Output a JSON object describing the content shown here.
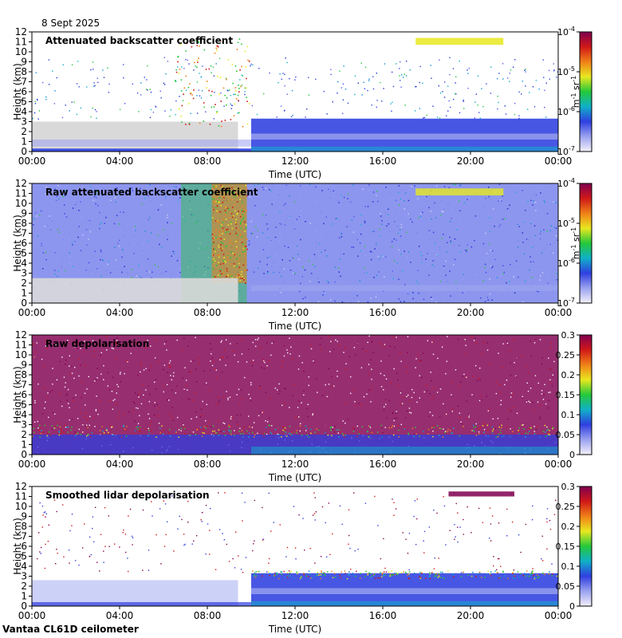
{
  "date": "8 Sept 2025",
  "footer": "Vantaa CL61D ceilometer",
  "colors": {
    "axis": "#000000",
    "clear_air": "#d9d9d9",
    "cmap": [
      "#f4f0fb",
      "#9aa2ef",
      "#2f3fe0",
      "#10b0c8",
      "#24c83a",
      "#e8e820",
      "#f08018",
      "#d01818",
      "#800050"
    ]
  },
  "chart_data": [
    {
      "type": "heatmap",
      "id": "att",
      "title": "Attenuated backscatter coefficient",
      "xlabel": "Time (UTC)",
      "ylabel": "Height (km)",
      "xticks": [
        "00:00",
        "04:00",
        "08:00",
        "12:00",
        "16:00",
        "20:00",
        "00:00"
      ],
      "xlim": [
        0,
        24
      ],
      "ylim": [
        0,
        12
      ],
      "yticks": [
        0,
        1,
        2,
        3,
        4,
        5,
        6,
        7,
        8,
        9,
        10,
        11,
        12
      ],
      "colorbar": {
        "scale": "log",
        "range": [
          1e-07,
          0.0001
        ],
        "ticks": [
          {
            "value": 1e-07,
            "base": "10",
            "exp": "-7"
          },
          {
            "value": 1e-06,
            "base": "10",
            "exp": "-6"
          },
          {
            "value": 1e-05,
            "base": "10",
            "exp": "-5"
          },
          {
            "value": 0.0001,
            "base": "10",
            "exp": "-4"
          }
        ],
        "label": {
          "m": "m",
          "m_exp": "-1",
          "sr": " sr",
          "sr_exp": "-1"
        }
      }
    },
    {
      "type": "heatmap",
      "id": "raw_att",
      "title": "Raw attenuated backscatter coefficient",
      "xlabel": "Time (UTC)",
      "ylabel": "Height (km)",
      "xticks": [
        "00:00",
        "04:00",
        "08:00",
        "12:00",
        "16:00",
        "20:00",
        "00:00"
      ],
      "xlim": [
        0,
        24
      ],
      "ylim": [
        0,
        12
      ],
      "yticks": [
        0,
        1,
        2,
        3,
        4,
        5,
        6,
        7,
        8,
        9,
        10,
        11,
        12
      ],
      "colorbar": {
        "scale": "log",
        "range": [
          1e-07,
          0.0001
        ],
        "ticks": [
          {
            "value": 1e-07,
            "base": "10",
            "exp": "-7"
          },
          {
            "value": 1e-06,
            "base": "10",
            "exp": "-6"
          },
          {
            "value": 1e-05,
            "base": "10",
            "exp": "-5"
          },
          {
            "value": 0.0001,
            "base": "10",
            "exp": "-4"
          }
        ],
        "label": {
          "m": "m",
          "m_exp": "-1",
          "sr": " sr",
          "sr_exp": "-1"
        }
      }
    },
    {
      "type": "heatmap",
      "id": "raw_depol",
      "title": "Raw depolarisation",
      "xlabel": "Time (UTC)",
      "ylabel": "Height (km)",
      "xticks": [
        "00:00",
        "04:00",
        "08:00",
        "12:00",
        "16:00",
        "20:00",
        "00:00"
      ],
      "xlim": [
        0,
        24
      ],
      "ylim": [
        0,
        12
      ],
      "yticks": [
        0,
        1,
        2,
        3,
        4,
        5,
        6,
        7,
        8,
        9,
        10,
        11,
        12
      ],
      "colorbar": {
        "scale": "linear",
        "range": [
          0,
          0.3
        ],
        "ticks": [
          {
            "value": 0,
            "label": "0"
          },
          {
            "value": 0.05,
            "label": "0.05"
          },
          {
            "value": 0.1,
            "label": "0.1"
          },
          {
            "value": 0.15,
            "label": "0.15"
          },
          {
            "value": 0.2,
            "label": "0.2"
          },
          {
            "value": 0.25,
            "label": "0.25"
          },
          {
            "value": 0.3,
            "label": "0.3"
          }
        ]
      }
    },
    {
      "type": "heatmap",
      "id": "smooth_depol",
      "title": "Smoothed lidar depolarisation",
      "xlabel": "Time (UTC)",
      "ylabel": "Height (km)",
      "xticks": [
        "00:00",
        "04:00",
        "08:00",
        "12:00",
        "16:00",
        "20:00",
        "00:00"
      ],
      "xlim": [
        0,
        24
      ],
      "ylim": [
        0,
        12
      ],
      "yticks": [
        0,
        1,
        2,
        3,
        4,
        5,
        6,
        7,
        8,
        9,
        10,
        11,
        12
      ],
      "colorbar": {
        "scale": "linear",
        "range": [
          0,
          0.3
        ],
        "ticks": [
          {
            "value": 0,
            "label": "0"
          },
          {
            "value": 0.05,
            "label": "0.05"
          },
          {
            "value": 0.1,
            "label": "0.1"
          },
          {
            "value": 0.15,
            "label": "0.15"
          },
          {
            "value": 0.2,
            "label": "0.2"
          },
          {
            "value": 0.25,
            "label": "0.25"
          },
          {
            "value": 0.3,
            "label": "0.3"
          }
        ]
      }
    }
  ]
}
